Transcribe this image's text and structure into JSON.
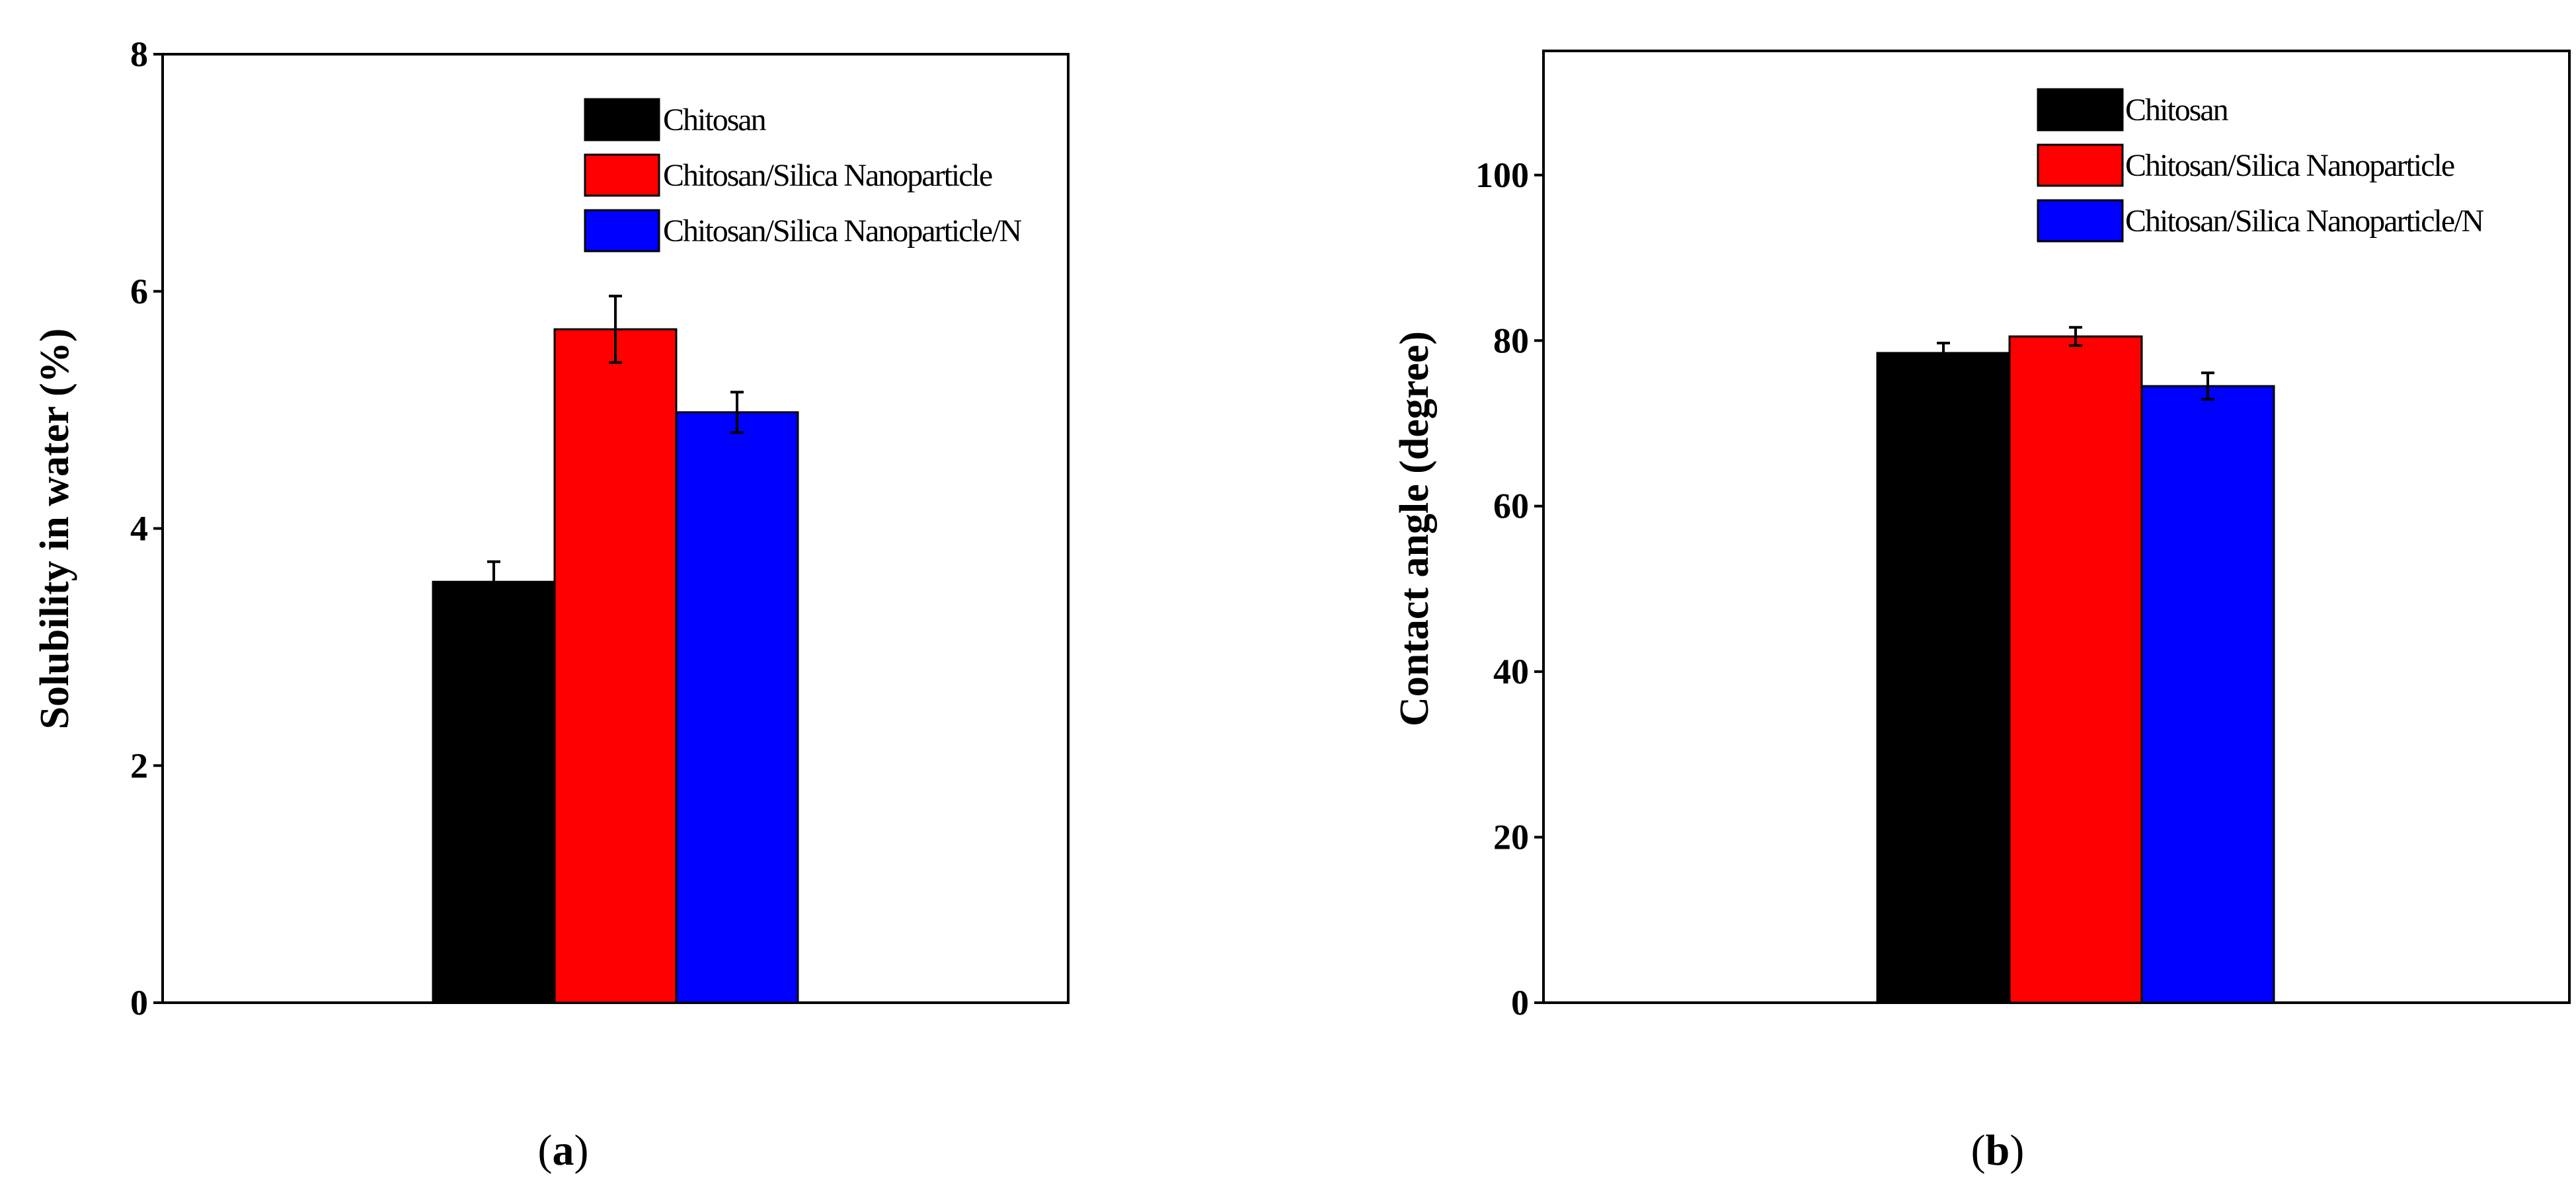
{
  "chart_data": [
    {
      "type": "bar",
      "panel_label": "a",
      "ylabel": "Solubility in water (%)",
      "ylim": [
        0,
        8
      ],
      "yticks": [
        0,
        2,
        4,
        6,
        8
      ],
      "grid": false,
      "legend_position": "top-right",
      "series": [
        {
          "name": "Chitosan",
          "value": 3.55,
          "error": 0.17,
          "color": "#000000"
        },
        {
          "name": "Chitosan/Silica Nanoparticle",
          "value": 5.68,
          "error": 0.28,
          "color": "#ff0000"
        },
        {
          "name": "Chitosan/Silica Nanoparticle/N",
          "value": 4.98,
          "error": 0.17,
          "color": "#0000ff"
        }
      ]
    },
    {
      "type": "bar",
      "panel_label": "b",
      "ylabel": "Contact angle (degree)",
      "ylim": [
        0,
        115
      ],
      "yticks": [
        0,
        20,
        40,
        60,
        80,
        100
      ],
      "grid": false,
      "legend_position": "top-right",
      "series": [
        {
          "name": "Chitosan",
          "value": 78.5,
          "error": 1.2,
          "color": "#000000"
        },
        {
          "name": "Chitosan/Silica Nanoparticle",
          "value": 80.5,
          "error": 1.1,
          "color": "#ff0000"
        },
        {
          "name": "Chitosan/Silica Nanoparticle/N",
          "value": 74.5,
          "error": 1.6,
          "color": "#0000ff"
        }
      ]
    }
  ],
  "captions": [
    {
      "open": "(",
      "letter": "a",
      "close": ")"
    },
    {
      "open": "(",
      "letter": "b",
      "close": ")"
    }
  ]
}
